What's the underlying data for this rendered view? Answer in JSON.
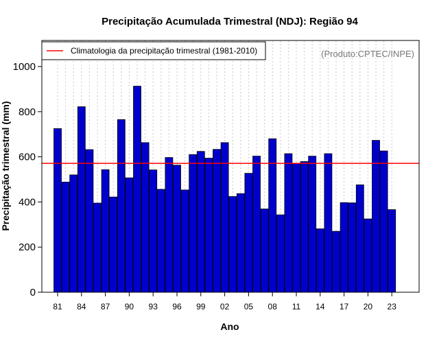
{
  "chart_data": {
    "type": "bar",
    "title": "Precipitação Acumulada Trimestral (NDJ): Região 94",
    "xlabel": "Ano",
    "ylabel": "Precipitação trimestral (mm)",
    "ylim": [
      0,
      1100
    ],
    "yticks": [
      0,
      200,
      400,
      600,
      800,
      1000
    ],
    "ytick_labels": [
      "0",
      "200",
      "400",
      "600",
      "800",
      "1000"
    ],
    "categories": [
      "81",
      "82",
      "83",
      "84",
      "85",
      "86",
      "87",
      "88",
      "89",
      "90",
      "91",
      "92",
      "93",
      "94",
      "95",
      "96",
      "97",
      "98",
      "99",
      "00",
      "01",
      "02",
      "03",
      "04",
      "05",
      "06",
      "07",
      "08",
      "09",
      "10",
      "11",
      "12",
      "13",
      "14",
      "15",
      "16",
      "17",
      "18",
      "19",
      "20",
      "21",
      "22",
      "23"
    ],
    "tick_labels": [
      "81",
      "84",
      "87",
      "90",
      "93",
      "96",
      "99",
      "02",
      "05",
      "08",
      "11",
      "14",
      "17",
      "20",
      "23"
    ],
    "values": [
      725,
      488,
      520,
      822,
      632,
      395,
      543,
      422,
      765,
      507,
      913,
      663,
      542,
      456,
      597,
      563,
      453,
      610,
      624,
      594,
      633,
      663,
      424,
      437,
      527,
      603,
      369,
      680,
      343,
      614,
      571,
      579,
      603,
      281,
      614,
      270,
      397,
      396,
      476,
      325,
      673,
      626,
      366
    ],
    "bar_color": "#0000CD",
    "grid": true,
    "reference_line": {
      "value": 571,
      "label": "Climatologia da precipitação trimestral (1981-2010)",
      "color": "#FF0000"
    },
    "legend_position": "top-left",
    "annotation": "(Produto:CPTEC/INPE)"
  }
}
